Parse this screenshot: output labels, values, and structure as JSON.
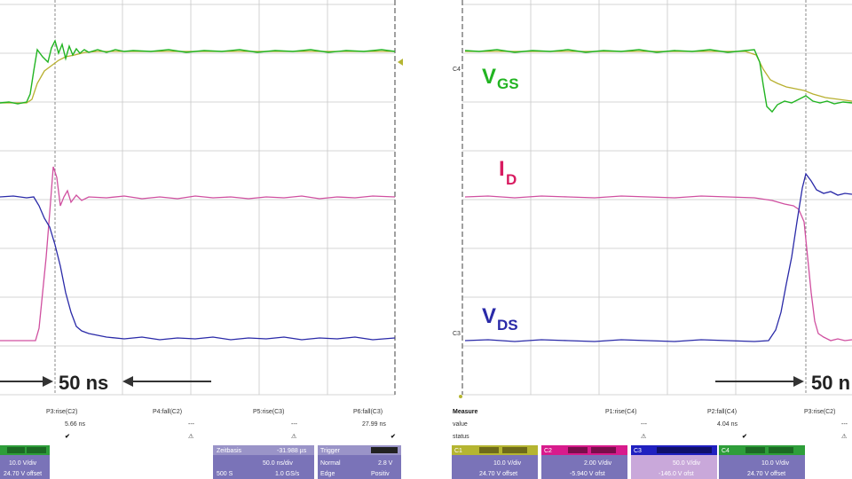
{
  "left_panel": {
    "time_label": "50 ns",
    "measure": {
      "params": [
        {
          "name": "P3:rise(C2)",
          "value": "5.66 ns",
          "status": "✔"
        },
        {
          "name": "P4:fall(C2)",
          "value": "---",
          "status": "⚠"
        },
        {
          "name": "P5:rise(C3)",
          "value": "---",
          "status": "⚠"
        },
        {
          "name": "P6:fall(C3)",
          "value": "27.99 ns",
          "status": "✔"
        }
      ]
    },
    "channel_box": {
      "line1": "10.0 V/div",
      "line2": "24.70 V offset"
    },
    "timebase": {
      "title": "Zeitbasis",
      "delay": "-31.988 µs",
      "div": "50.0 ns/div",
      "samples": "500 S",
      "rate": "1.0 GS/s"
    },
    "trigger": {
      "title": "Trigger",
      "mode": "Normal",
      "level": "2.8 V",
      "type": "Edge",
      "slope": "Positiv"
    }
  },
  "right_panel": {
    "labels": {
      "vgs_main": "V",
      "vgs_sub": "GS",
      "id_main": "I",
      "id_sub": "D",
      "vds_main": "V",
      "vds_sub": "DS"
    },
    "time_label": "50 n",
    "measure": {
      "title": "Measure",
      "row_value": "value",
      "row_status": "status",
      "params": [
        {
          "name": "P1:rise(C4)",
          "value": "---",
          "status": "⚠"
        },
        {
          "name": "P2:fall(C4)",
          "value": "4.04 ns",
          "status": "✔"
        },
        {
          "name": "P3:rise(C2)",
          "value": "---",
          "status": "⚠"
        }
      ]
    },
    "channels": [
      {
        "id": "C1",
        "color": "#b5b531",
        "line1": "10.0 V/div",
        "line2": "24.70 V offset"
      },
      {
        "id": "C2",
        "color": "#d81b8c",
        "line1": "2.00 V/div",
        "line2": "-5.940 V ofst"
      },
      {
        "id": "C3",
        "color": "#2020c0",
        "line1": "50.0 V/div",
        "line2": "-146.0 V ofst"
      },
      {
        "id": "C4",
        "color": "#2ca02c",
        "line1": "10.0 V/div",
        "line2": "24.70 V offset"
      }
    ],
    "markers": {
      "c4": "C4",
      "c3": "C3"
    }
  },
  "colors": {
    "vgs": "#22b422",
    "id": "#d81b60",
    "vds": "#2a2aa8",
    "c1_trace": "#b8b030",
    "c2_trace": "#d050a0"
  }
}
